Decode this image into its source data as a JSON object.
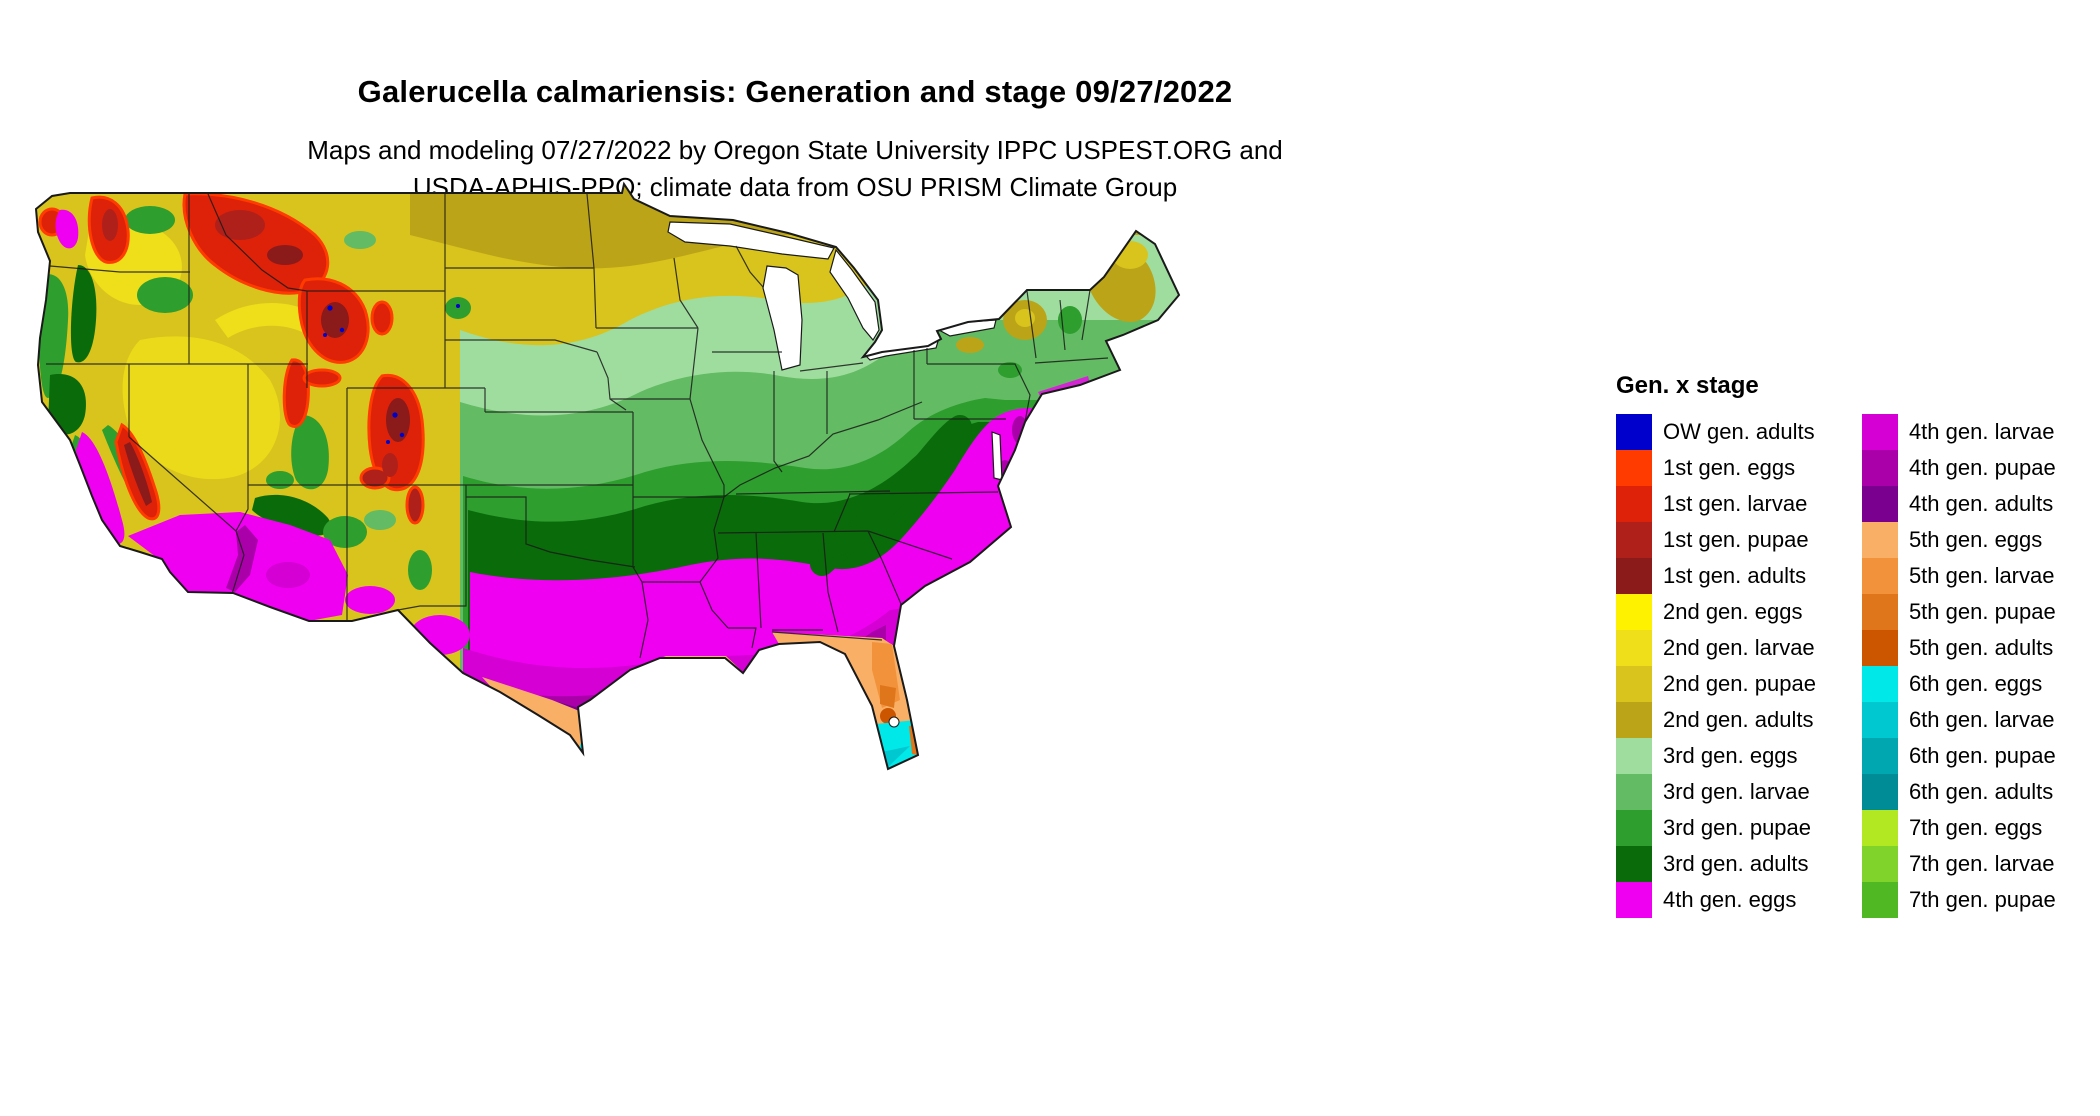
{
  "header": {
    "title": "Galerucella calmariensis: Generation and stage 09/27/2022",
    "subtitle1": "Maps and modeling 07/27/2022 by Oregon State University IPPC USPEST.ORG and",
    "subtitle2": "USDA-APHIS-PPQ; climate data from OSU PRISM Climate Group"
  },
  "legend": {
    "title": "Gen. x stage",
    "columns": [
      {
        "items": [
          {
            "key": "ow_adults",
            "label": "OW gen. adults",
            "color": "#0000CC"
          },
          {
            "key": "g1_eggs",
            "label": "1st gen. eggs",
            "color": "#FF3B00"
          },
          {
            "key": "g1_larvae",
            "label": "1st gen. larvae",
            "color": "#DE2209"
          },
          {
            "key": "g1_pupae",
            "label": "1st gen. pupae",
            "color": "#B0201A"
          },
          {
            "key": "g1_adults",
            "label": "1st gen. adults",
            "color": "#8B1A1A"
          },
          {
            "key": "g2_eggs",
            "label": "2nd gen. eggs",
            "color": "#FFF200"
          },
          {
            "key": "g2_larvae",
            "label": "2nd gen. larvae",
            "color": "#EFDE1A"
          },
          {
            "key": "g2_pupae",
            "label": "2nd gen. pupae",
            "color": "#D8C41C"
          },
          {
            "key": "g2_adults",
            "label": "2nd gen. adults",
            "color": "#BCA418"
          },
          {
            "key": "g3_eggs",
            "label": "3rd gen. eggs",
            "color": "#9FDD9F"
          },
          {
            "key": "g3_larvae",
            "label": "3rd gen. larvae",
            "color": "#63BB63"
          },
          {
            "key": "g3_pupae",
            "label": "3rd gen. pupae",
            "color": "#2E9E2E"
          },
          {
            "key": "g3_adults",
            "label": "3rd gen. adults",
            "color": "#0A6B0A"
          },
          {
            "key": "g4_eggs",
            "label": "4th gen. eggs",
            "color": "#F000F0"
          }
        ]
      },
      {
        "items": [
          {
            "key": "g4_larvae",
            "label": "4th gen. larvae",
            "color": "#D400D4"
          },
          {
            "key": "g4_pupae",
            "label": "4th gen. pupae",
            "color": "#AA00AA"
          },
          {
            "key": "g4_adults",
            "label": "4th gen. adults",
            "color": "#7A0090"
          },
          {
            "key": "g5_eggs",
            "label": "5th gen. eggs",
            "color": "#F9B066"
          },
          {
            "key": "g5_larvae",
            "label": "5th gen. larvae",
            "color": "#F2933C"
          },
          {
            "key": "g5_pupae",
            "label": "5th gen. pupae",
            "color": "#E0761C"
          },
          {
            "key": "g5_adults",
            "label": "5th gen. adults",
            "color": "#CC5500"
          },
          {
            "key": "g6_eggs",
            "label": "6th gen. eggs",
            "color": "#00E8E8"
          },
          {
            "key": "g6_larvae",
            "label": "6th gen. larvae",
            "color": "#00C8D0"
          },
          {
            "key": "g6_pupae",
            "label": "6th gen. pupae",
            "color": "#00A6B0"
          },
          {
            "key": "g6_adults",
            "label": "6th gen. adults",
            "color": "#008C96"
          },
          {
            "key": "g7_eggs",
            "label": "7th gen. eggs",
            "color": "#B2E822"
          },
          {
            "key": "g7_larvae",
            "label": "7th gen. larvae",
            "color": "#7FD32A"
          },
          {
            "key": "g7_pupae",
            "label": "7th gen. pupae",
            "color": "#4FB822"
          }
        ]
      }
    ]
  }
}
